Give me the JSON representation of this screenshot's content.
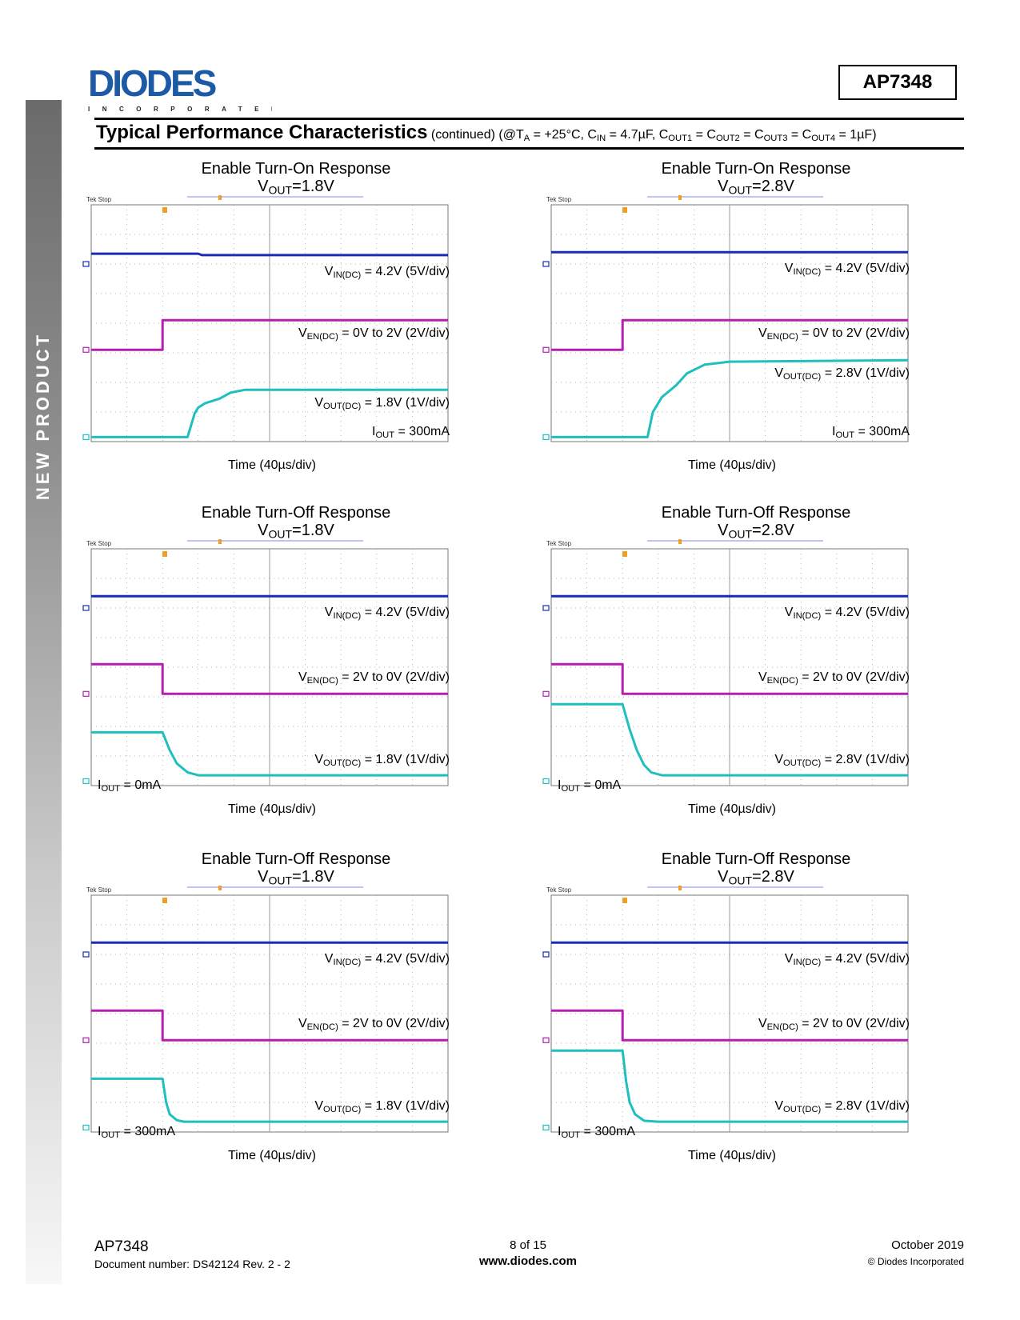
{
  "sidebar": {
    "label": "NEW PRODUCT"
  },
  "header": {
    "logo_text": "DIODES",
    "logo_subtext": "INCORPORATED",
    "part_number": "AP7348",
    "section_title": "Typical Performance Characteristics",
    "conditions": {
      "prefix": "(continued) (@T",
      "ta_sub": "A",
      "ta_value": " = +25°C, C",
      "cin_sub": "IN",
      "cin_value": " = 4.7µF, C",
      "cout1_sub": "OUT1",
      "cout1_eq": " = C",
      "cout2_sub": "OUT2",
      "cout2_eq": " = C",
      "cout3_sub": "OUT3",
      "cout3_eq": " = C",
      "cout4_sub": "OUT4",
      "cout4_eq": " = 1µF)"
    }
  },
  "colors": {
    "vin": "#1a2bb5",
    "ven": "#b51fb0",
    "vout": "#1fbfbf",
    "grid": "#9a9a9a",
    "cursor": "#aab0f0",
    "trigger": "#f0a020"
  },
  "chart_data": [
    {
      "type": "line",
      "title": "Enable Turn-On Response",
      "subtitle_v": "V",
      "subtitle_sub": "OUT",
      "subtitle_val": "=1.8V",
      "scope_label": "Tek Stop",
      "xlabel": "Time (40µs/div)",
      "x_divisions": 10,
      "y_divisions": 8,
      "annotations": {
        "vin": {
          "v": "V",
          "sub": "IN(DC)",
          "text": " = 4.2V (5V/div)"
        },
        "ven": {
          "v": "V",
          "sub": "EN(DC)",
          "text": " = 0V to 2V (2V/div)"
        },
        "vout": {
          "v": "V",
          "sub": "OUT(DC)",
          "text": " = 1.8V (1V/div)"
        },
        "iout": {
          "v": "I",
          "sub": "OUT",
          "text": " = 300mA"
        }
      },
      "series": [
        {
          "name": "VIN",
          "points": [
            [
              0,
              6.35
            ],
            [
              3,
              6.35
            ],
            [
              3.1,
              6.3
            ],
            [
              10,
              6.3
            ]
          ]
        },
        {
          "name": "VEN",
          "points": [
            [
              0,
              3.1
            ],
            [
              2,
              3.1
            ],
            [
              2,
              4.1
            ],
            [
              10,
              4.1
            ]
          ]
        },
        {
          "name": "VOUT",
          "points": [
            [
              0,
              0.15
            ],
            [
              2.7,
              0.15
            ],
            [
              2.9,
              0.95
            ],
            [
              3.0,
              1.15
            ],
            [
              3.2,
              1.3
            ],
            [
              3.6,
              1.45
            ],
            [
              3.9,
              1.65
            ],
            [
              4.3,
              1.75
            ],
            [
              10,
              1.75
            ]
          ]
        }
      ]
    },
    {
      "type": "line",
      "title": "Enable Turn-On Response",
      "subtitle_v": "V",
      "subtitle_sub": "OUT",
      "subtitle_val": "=2.8V",
      "scope_label": "Tek Stop",
      "xlabel": "Time (40µs/div)",
      "x_divisions": 10,
      "y_divisions": 8,
      "annotations": {
        "vin": {
          "v": "V",
          "sub": "IN(DC)",
          "text": " = 4.2V (5V/div)"
        },
        "ven": {
          "v": "V",
          "sub": "EN(DC)",
          "text": " = 0V to 2V (2V/div)"
        },
        "vout": {
          "v": "V",
          "sub": "OUT(DC)",
          "text": " = 2.8V (1V/div)"
        },
        "iout": {
          "v": "I",
          "sub": "OUT",
          "text": " = 300mA"
        }
      },
      "series": [
        {
          "name": "VIN",
          "points": [
            [
              0,
              6.4
            ],
            [
              10,
              6.4
            ]
          ]
        },
        {
          "name": "VEN",
          "points": [
            [
              0,
              3.1
            ],
            [
              2,
              3.1
            ],
            [
              2,
              4.1
            ],
            [
              10,
              4.1
            ]
          ]
        },
        {
          "name": "VOUT",
          "points": [
            [
              0,
              0.15
            ],
            [
              2.7,
              0.15
            ],
            [
              2.85,
              1.0
            ],
            [
              3.1,
              1.5
            ],
            [
              3.5,
              1.9
            ],
            [
              3.8,
              2.3
            ],
            [
              4.3,
              2.6
            ],
            [
              5,
              2.7
            ],
            [
              10,
              2.75
            ]
          ]
        }
      ]
    },
    {
      "type": "line",
      "title": "Enable Turn-Off Response",
      "subtitle_v": "V",
      "subtitle_sub": "OUT",
      "subtitle_val": "=1.8V",
      "scope_label": "Tek Stop",
      "xlabel": "Time (40µs/div)",
      "x_divisions": 10,
      "y_divisions": 8,
      "annotations": {
        "vin": {
          "v": "V",
          "sub": "IN(DC)",
          "text": " = 4.2V (5V/div)"
        },
        "ven": {
          "v": "V",
          "sub": "EN(DC)",
          "text": " = 2V to 0V (2V/div)"
        },
        "vout": {
          "v": "V",
          "sub": "OUT(DC)",
          "text": " = 1.8V (1V/div)"
        },
        "iout": {
          "v": "I",
          "sub": "OUT",
          "text": " = 0mA"
        }
      },
      "series": [
        {
          "name": "VIN",
          "points": [
            [
              0,
              6.4
            ],
            [
              10,
              6.4
            ]
          ]
        },
        {
          "name": "VEN",
          "points": [
            [
              0,
              4.1
            ],
            [
              2,
              4.1
            ],
            [
              2,
              3.1
            ],
            [
              10,
              3.1
            ]
          ]
        },
        {
          "name": "VOUT",
          "points": [
            [
              0,
              1.8
            ],
            [
              2,
              1.8
            ],
            [
              2.2,
              1.2
            ],
            [
              2.4,
              0.75
            ],
            [
              2.7,
              0.45
            ],
            [
              3,
              0.35
            ],
            [
              10,
              0.35
            ]
          ]
        }
      ]
    },
    {
      "type": "line",
      "title": "Enable Turn-Off Response",
      "subtitle_v": "V",
      "subtitle_sub": "OUT",
      "subtitle_val": "=2.8V",
      "scope_label": "Tek Stop",
      "xlabel": "Time (40µs/div)",
      "x_divisions": 10,
      "y_divisions": 8,
      "annotations": {
        "vin": {
          "v": "V",
          "sub": "IN(DC)",
          "text": " = 4.2V (5V/div)"
        },
        "ven": {
          "v": "V",
          "sub": "EN(DC)",
          "text": " = 2V to 0V (2V/div)"
        },
        "vout": {
          "v": "V",
          "sub": "OUT(DC)",
          "text": " = 2.8V (1V/div)"
        },
        "iout": {
          "v": "I",
          "sub": "OUT",
          "text": " = 0mA"
        }
      },
      "series": [
        {
          "name": "VIN",
          "points": [
            [
              0,
              6.4
            ],
            [
              10,
              6.4
            ]
          ]
        },
        {
          "name": "VEN",
          "points": [
            [
              0,
              4.1
            ],
            [
              2,
              4.1
            ],
            [
              2,
              3.1
            ],
            [
              10,
              3.1
            ]
          ]
        },
        {
          "name": "VOUT",
          "points": [
            [
              0,
              2.75
            ],
            [
              2,
              2.75
            ],
            [
              2.2,
              1.9
            ],
            [
              2.4,
              1.2
            ],
            [
              2.6,
              0.7
            ],
            [
              2.8,
              0.45
            ],
            [
              3.1,
              0.35
            ],
            [
              10,
              0.35
            ]
          ]
        }
      ]
    },
    {
      "type": "line",
      "title": "Enable Turn-Off Response",
      "subtitle_v": "V",
      "subtitle_sub": "OUT",
      "subtitle_val": "=1.8V",
      "scope_label": "Tek Stop",
      "xlabel": "Time (40µs/div)",
      "x_divisions": 10,
      "y_divisions": 8,
      "annotations": {
        "vin": {
          "v": "V",
          "sub": "IN(DC)",
          "text": " = 4.2V (5V/div)"
        },
        "ven": {
          "v": "V",
          "sub": "EN(DC)",
          "text": " = 2V to 0V (2V/div)"
        },
        "vout": {
          "v": "V",
          "sub": "OUT(DC)",
          "text": " = 1.8V (1V/div)"
        },
        "iout": {
          "v": "I",
          "sub": "OUT",
          "text": " = 300mA"
        }
      },
      "series": [
        {
          "name": "VIN",
          "points": [
            [
              0,
              6.4
            ],
            [
              10,
              6.4
            ]
          ]
        },
        {
          "name": "VEN",
          "points": [
            [
              0,
              4.1
            ],
            [
              2,
              4.1
            ],
            [
              2,
              3.1
            ],
            [
              10,
              3.1
            ]
          ]
        },
        {
          "name": "VOUT",
          "points": [
            [
              0,
              1.8
            ],
            [
              2,
              1.8
            ],
            [
              2.1,
              1.0
            ],
            [
              2.2,
              0.6
            ],
            [
              2.4,
              0.4
            ],
            [
              2.6,
              0.35
            ],
            [
              10,
              0.35
            ]
          ]
        }
      ]
    },
    {
      "type": "line",
      "title": "Enable Turn-Off Response",
      "subtitle_v": "V",
      "subtitle_sub": "OUT",
      "subtitle_val": "=2.8V",
      "scope_label": "Tek Stop",
      "xlabel": "Time (40µs/div)",
      "x_divisions": 10,
      "y_divisions": 8,
      "annotations": {
        "vin": {
          "v": "V",
          "sub": "IN(DC)",
          "text": " = 4.2V (5V/div)"
        },
        "ven": {
          "v": "V",
          "sub": "EN(DC)",
          "text": " = 2V to 0V (2V/div)"
        },
        "vout": {
          "v": "V",
          "sub": "OUT(DC)",
          "text": " = 2.8V (1V/div)"
        },
        "iout": {
          "v": "I",
          "sub": "OUT",
          "text": " = 300mA"
        }
      },
      "series": [
        {
          "name": "VIN",
          "points": [
            [
              0,
              6.4
            ],
            [
              10,
              6.4
            ]
          ]
        },
        {
          "name": "VEN",
          "points": [
            [
              0,
              4.1
            ],
            [
              2,
              4.1
            ],
            [
              2,
              3.1
            ],
            [
              10,
              3.1
            ]
          ]
        },
        {
          "name": "VOUT",
          "points": [
            [
              0,
              2.75
            ],
            [
              2,
              2.75
            ],
            [
              2.1,
              1.7
            ],
            [
              2.2,
              1.0
            ],
            [
              2.35,
              0.6
            ],
            [
              2.6,
              0.38
            ],
            [
              3,
              0.35
            ],
            [
              10,
              0.35
            ]
          ]
        }
      ]
    }
  ],
  "footer": {
    "part": "AP7348",
    "doc_number": "Document number: DS42124  Rev. 2 - 2",
    "page": "8 of 15",
    "website": "www.diodes.com",
    "date": "October 2019",
    "copyright": "© Diodes Incorporated"
  }
}
